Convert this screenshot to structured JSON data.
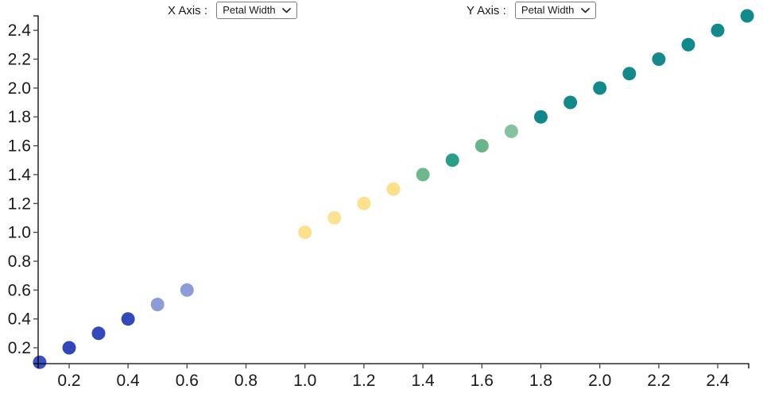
{
  "controls": {
    "x_axis": {
      "label": "X Axis : ",
      "selected": "Petal Width"
    },
    "y_axis": {
      "label": "Y Axis : ",
      "selected": "Petal Width"
    }
  },
  "chart_data": {
    "type": "scatter",
    "title": "",
    "xlabel": "Petal Width",
    "ylabel": "Petal Width",
    "xlim": [
      0.095,
      2.505
    ],
    "ylim": [
      0.09,
      2.5
    ],
    "x_tick_labels": [
      "0.2",
      "0.4",
      "0.6",
      "0.8",
      "1.0",
      "1.2",
      "1.4",
      "1.6",
      "1.8",
      "2.0",
      "2.2",
      "2.4"
    ],
    "y_tick_labels": [
      "0.2",
      "0.4",
      "0.6",
      "0.8",
      "1.0",
      "1.2",
      "1.4",
      "1.6",
      "1.8",
      "2.0",
      "2.2",
      "2.4"
    ],
    "grid": false,
    "legend": false,
    "point_radius": 8.5,
    "axis_color": "#000000",
    "tick_color": "#444444",
    "tick_label_color": "#1a1a1a",
    "points": [
      {
        "x": 0.1,
        "y": 0.1,
        "color": "#3d50c3"
      },
      {
        "x": 0.2,
        "y": 0.2,
        "color": "#3046b9"
      },
      {
        "x": 0.3,
        "y": 0.3,
        "color": "#3349bc"
      },
      {
        "x": 0.4,
        "y": 0.4,
        "color": "#3349bc"
      },
      {
        "x": 0.5,
        "y": 0.5,
        "color": "#8c9bd9"
      },
      {
        "x": 0.6,
        "y": 0.6,
        "color": "#8c9bd9"
      },
      {
        "x": 1.0,
        "y": 1.0,
        "color": "#fbe18b"
      },
      {
        "x": 1.1,
        "y": 1.1,
        "color": "#fce293"
      },
      {
        "x": 1.2,
        "y": 1.2,
        "color": "#fbe18b"
      },
      {
        "x": 1.3,
        "y": 1.3,
        "color": "#fbe08a"
      },
      {
        "x": 1.4,
        "y": 1.4,
        "color": "#70b78e"
      },
      {
        "x": 1.5,
        "y": 1.5,
        "color": "#2b9e8a"
      },
      {
        "x": 1.6,
        "y": 1.6,
        "color": "#68b48b"
      },
      {
        "x": 1.7,
        "y": 1.7,
        "color": "#86c2a0"
      },
      {
        "x": 1.8,
        "y": 1.8,
        "color": "#0f898c"
      },
      {
        "x": 1.9,
        "y": 1.9,
        "color": "#12898b"
      },
      {
        "x": 2.0,
        "y": 2.0,
        "color": "#12898b"
      },
      {
        "x": 2.1,
        "y": 2.1,
        "color": "#12898b"
      },
      {
        "x": 2.2,
        "y": 2.2,
        "color": "#15898b"
      },
      {
        "x": 2.3,
        "y": 2.3,
        "color": "#0f898c"
      },
      {
        "x": 2.4,
        "y": 2.4,
        "color": "#12898b"
      },
      {
        "x": 2.5,
        "y": 2.5,
        "color": "#12898b"
      }
    ]
  }
}
